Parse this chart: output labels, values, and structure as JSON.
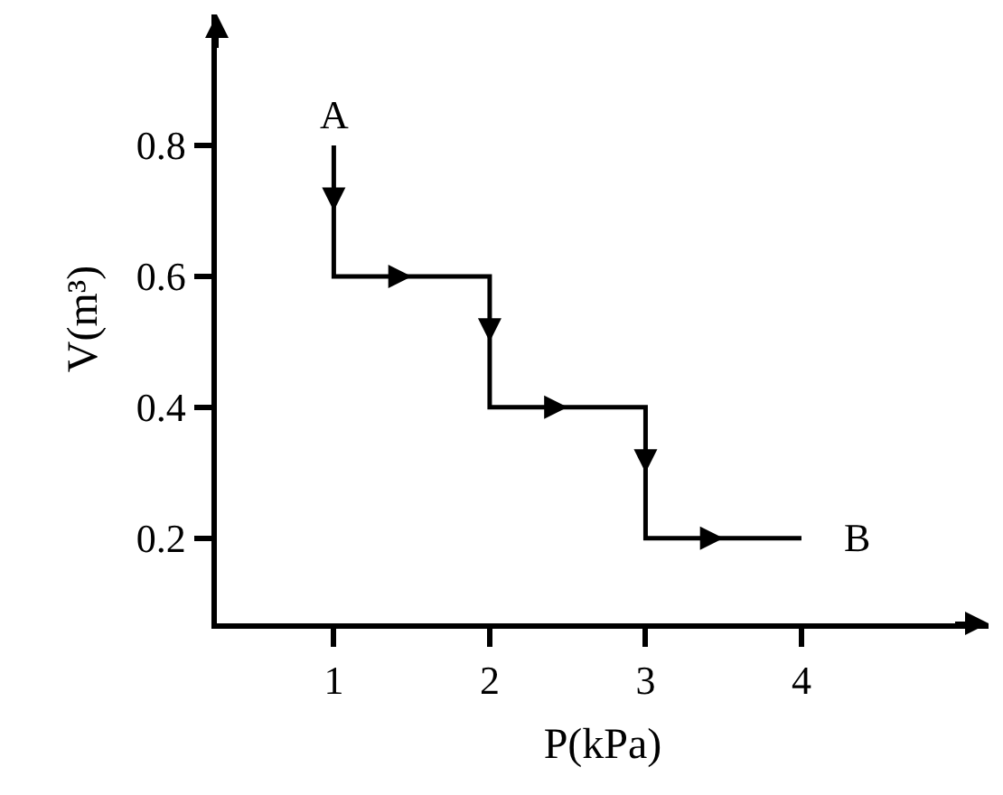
{
  "chart_data": {
    "type": "line",
    "xlabel": "P(kPa)",
    "ylabel": "V(m³)",
    "x": [
      1,
      1,
      2,
      2,
      3,
      3,
      4
    ],
    "series": [
      {
        "color": "#000000",
        "values": [
          0.8,
          0.6,
          0.6,
          0.4,
          0.4,
          0.2,
          0.2
        ]
      }
    ],
    "xlim": [
      0.25,
      5.2
    ],
    "ylim": [
      0.07,
      1.0
    ],
    "xticks": [
      1,
      2,
      3,
      4
    ],
    "yticks": [
      0.2,
      0.4,
      0.6,
      0.8
    ],
    "annotations": [
      {
        "text": "A",
        "x": 1,
        "y": 0.8
      },
      {
        "text": "B",
        "x": 4,
        "y": 0.2
      }
    ],
    "marker": "none",
    "line_style": "solid"
  }
}
